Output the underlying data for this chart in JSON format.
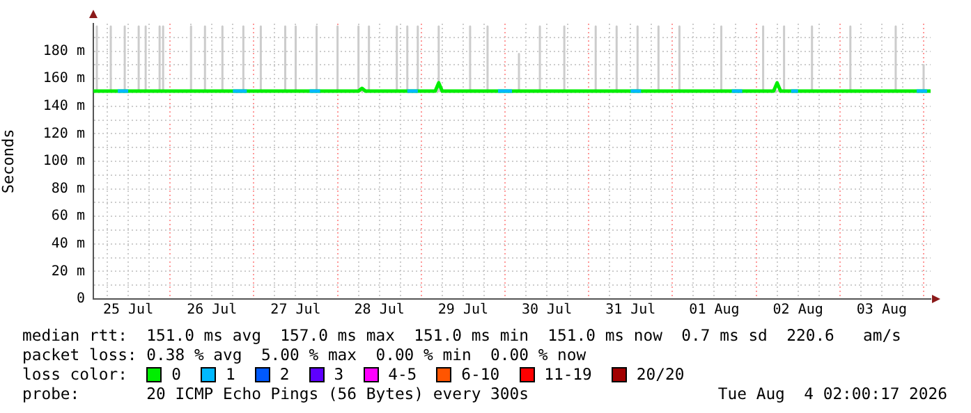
{
  "chart_data": {
    "type": "line",
    "ylabel": "Seconds",
    "legend_title": "loss color:",
    "legend": "bottom",
    "grid": true,
    "marker": "none",
    "line_style": "solid",
    "xlim": [
      "2026-07-25T02:00",
      "2026-08-04T02:00"
    ],
    "xticks": [
      {
        "value": "2026-07-25T06:00",
        "label": null
      },
      {
        "value": "2026-07-25T12:00",
        "label": "25 Jul"
      },
      {
        "value": "2026-07-25T18:00",
        "label": null
      },
      {
        "value": "2026-07-26T00:00",
        "label": null
      },
      {
        "value": "2026-07-26T06:00",
        "label": null
      },
      {
        "value": "2026-07-26T12:00",
        "label": "26 Jul"
      },
      {
        "value": "2026-07-26T18:00",
        "label": null
      },
      {
        "value": "2026-07-27T00:00",
        "label": null
      },
      {
        "value": "2026-07-27T06:00",
        "label": null
      },
      {
        "value": "2026-07-27T12:00",
        "label": "27 Jul"
      },
      {
        "value": "2026-07-27T18:00",
        "label": null
      },
      {
        "value": "2026-07-28T00:00",
        "label": null
      },
      {
        "value": "2026-07-28T06:00",
        "label": null
      },
      {
        "value": "2026-07-28T12:00",
        "label": "28 Jul"
      },
      {
        "value": "2026-07-28T18:00",
        "label": null
      },
      {
        "value": "2026-07-29T00:00",
        "label": null
      },
      {
        "value": "2026-07-29T06:00",
        "label": null
      },
      {
        "value": "2026-07-29T12:00",
        "label": "29 Jul"
      },
      {
        "value": "2026-07-29T18:00",
        "label": null
      },
      {
        "value": "2026-07-30T00:00",
        "label": null
      },
      {
        "value": "2026-07-30T06:00",
        "label": null
      },
      {
        "value": "2026-07-30T12:00",
        "label": "30 Jul"
      },
      {
        "value": "2026-07-30T18:00",
        "label": null
      },
      {
        "value": "2026-07-31T00:00",
        "label": null
      },
      {
        "value": "2026-07-31T06:00",
        "label": null
      },
      {
        "value": "2026-07-31T12:00",
        "label": "31 Jul"
      },
      {
        "value": "2026-07-31T18:00",
        "label": null
      },
      {
        "value": "2026-08-01T00:00",
        "label": null
      },
      {
        "value": "2026-08-01T06:00",
        "label": null
      },
      {
        "value": "2026-08-01T12:00",
        "label": "01 Aug"
      },
      {
        "value": "2026-08-01T18:00",
        "label": null
      },
      {
        "value": "2026-08-02T00:00",
        "label": null
      },
      {
        "value": "2026-08-02T06:00",
        "label": null
      },
      {
        "value": "2026-08-02T12:00",
        "label": "02 Aug"
      },
      {
        "value": "2026-08-02T18:00",
        "label": null
      },
      {
        "value": "2026-08-03T00:00",
        "label": null
      },
      {
        "value": "2026-08-03T06:00",
        "label": null
      },
      {
        "value": "2026-08-03T12:00",
        "label": "03 Aug"
      },
      {
        "value": "2026-08-03T18:00",
        "label": null
      },
      {
        "value": "2026-08-04T00:00",
        "label": null
      }
    ],
    "ylim": [
      0,
      200
    ],
    "yticks": [
      0,
      {
        "value": 10,
        "label": null
      },
      {
        "value": 20,
        "label": "20 m"
      },
      {
        "value": 30,
        "label": null
      },
      {
        "value": 40,
        "label": "40 m"
      },
      {
        "value": 50,
        "label": null
      },
      {
        "value": 60,
        "label": "60 m"
      },
      {
        "value": 70,
        "label": null
      },
      {
        "value": 80,
        "label": "80 m"
      },
      {
        "value": 90,
        "label": null
      },
      {
        "value": 100,
        "label": "100 m"
      },
      {
        "value": 110,
        "label": null
      },
      {
        "value": 120,
        "label": "120 m"
      },
      {
        "value": 130,
        "label": null
      },
      {
        "value": 140,
        "label": "140 m"
      },
      {
        "value": 150,
        "label": null
      },
      {
        "value": 160,
        "label": "160 m"
      },
      {
        "value": 170,
        "label": null
      },
      {
        "value": 180,
        "label": "180 m"
      },
      {
        "value": 190,
        "label": null
      }
    ],
    "series": [
      {
        "color": "#cccccc",
        "x": [
          "2026-07-25T03:00",
          "2026-07-25T03:00",
          "2026-07-25T03:00",
          "2026-07-25T07:00",
          "2026-07-25T07:00",
          "2026-07-25T07:00",
          "2026-07-25T11:00",
          "2026-07-25T11:00",
          "2026-07-25T11:00",
          "2026-07-25T15:00",
          "2026-07-25T15:00",
          "2026-07-25T15:00",
          "2026-07-25T17:00",
          "2026-07-25T17:00",
          "2026-07-25T17:00",
          "2026-07-25T21:00",
          "2026-07-25T21:00",
          "2026-07-25T21:00",
          "2026-07-25T22:00",
          "2026-07-25T22:00",
          "2026-07-25T22:00",
          "2026-07-26T06:00",
          "2026-07-26T06:00",
          "2026-07-26T06:00",
          "2026-07-26T10:00",
          "2026-07-26T10:00",
          "2026-07-26T10:00",
          "2026-07-26T15:00",
          "2026-07-26T15:00",
          "2026-07-26T15:00",
          "2026-07-26T21:00",
          "2026-07-26T21:00",
          "2026-07-26T21:00",
          "2026-07-27T02:00",
          "2026-07-27T02:00",
          "2026-07-27T02:00",
          "2026-07-27T09:00",
          "2026-07-27T09:00",
          "2026-07-27T09:00",
          "2026-07-27T12:00",
          "2026-07-27T12:00",
          "2026-07-27T12:00",
          "2026-07-27T18:00",
          "2026-07-27T18:00",
          "2026-07-27T18:00",
          "2026-07-28T00:00",
          "2026-07-28T00:00",
          "2026-07-28T00:00",
          "2026-07-28T06:00",
          "2026-07-28T06:00",
          "2026-07-28T06:00",
          "2026-07-28T09:00",
          "2026-07-28T09:00",
          "2026-07-28T09:00",
          "2026-07-28T17:00",
          "2026-07-28T17:00",
          "2026-07-28T17:00",
          "2026-07-28T20:00",
          "2026-07-28T20:00",
          "2026-07-28T20:00",
          "2026-07-28T23:00",
          "2026-07-28T23:00",
          "2026-07-28T23:00",
          "2026-07-29T05:00",
          "2026-07-29T05:00",
          "2026-07-29T05:00",
          "2026-07-29T14:00",
          "2026-07-29T14:00",
          "2026-07-29T14:00",
          "2026-07-29T19:00",
          "2026-07-29T19:00",
          "2026-07-29T19:00",
          "2026-07-30T04:00",
          "2026-07-30T04:00",
          "2026-07-30T04:00",
          "2026-07-30T10:00",
          "2026-07-30T10:00",
          "2026-07-30T10:00",
          "2026-07-30T17:00",
          "2026-07-30T17:00",
          "2026-07-30T17:00",
          "2026-07-31T02:00",
          "2026-07-31T02:00",
          "2026-07-31T02:00",
          "2026-07-31T08:00",
          "2026-07-31T08:00",
          "2026-07-31T08:00",
          "2026-07-31T14:00",
          "2026-07-31T14:00",
          "2026-07-31T14:00",
          "2026-07-31T20:00",
          "2026-07-31T20:00",
          "2026-07-31T20:00",
          "2026-08-01T02:00",
          "2026-08-01T02:00",
          "2026-08-01T02:00",
          "2026-08-01T14:00",
          "2026-08-01T14:00",
          "2026-08-01T14:00",
          "2026-08-02T02:00",
          "2026-08-02T02:00",
          "2026-08-02T02:00",
          "2026-08-02T08:00",
          "2026-08-02T08:00",
          "2026-08-02T08:00",
          "2026-08-02T16:00",
          "2026-08-02T16:00",
          "2026-08-02T16:00",
          "2026-08-03T03:00",
          "2026-08-03T03:00",
          "2026-08-03T03:00",
          "2026-08-03T16:00",
          "2026-08-03T16:00",
          "2026-08-03T16:00",
          "2026-08-04T00:00",
          "2026-08-04T00:00",
          "2026-08-04T00:00"
        ],
        "values": [
          151,
          198,
          151,
          151,
          198,
          151,
          151,
          198,
          151,
          151,
          198,
          151,
          151,
          198,
          151,
          151,
          198,
          151,
          151,
          198,
          151,
          151,
          198,
          151,
          151,
          198,
          151,
          151,
          198,
          151,
          151,
          198,
          151,
          151,
          198,
          151,
          151,
          198,
          151,
          151,
          198,
          151,
          151,
          198,
          151,
          151,
          198,
          151,
          151,
          198,
          151,
          151,
          198,
          151,
          151,
          198,
          151,
          151,
          198,
          151,
          151,
          198,
          151,
          151,
          198,
          151,
          151,
          198,
          151,
          151,
          198,
          151,
          151,
          178,
          151,
          151,
          198,
          151,
          151,
          198,
          151,
          151,
          198,
          151,
          151,
          198,
          151,
          151,
          198,
          151,
          151,
          198,
          151,
          151,
          198,
          151,
          151,
          198,
          151,
          151,
          198,
          151,
          151,
          198,
          151,
          151,
          198,
          151,
          151,
          198,
          151,
          151,
          198,
          151,
          151,
          170,
          151
        ]
      },
      {
        "name": "0",
        "color": "#00ee00",
        "x": [
          "2026-07-25T02:00",
          "2026-07-28T06:00",
          "2026-07-28T07:00",
          "2026-07-28T08:00",
          "2026-07-29T04:00",
          "2026-07-29T05:00",
          "2026-07-29T06:00",
          "2026-08-02T05:00",
          "2026-08-02T06:00",
          "2026-08-02T07:00",
          "2026-08-04T02:00"
        ],
        "values": [
          151,
          151,
          153,
          151,
          151,
          157,
          151,
          151,
          157,
          151,
          151
        ]
      },
      {
        "name": "1",
        "color": "#00b8ff",
        "x": [
          "2026-07-25T09:00",
          "2026-07-25T12:00",
          "2026-07-25T12:30",
          "2026-07-26T18:00",
          "2026-07-26T22:00",
          "2026-07-26T22:30",
          "2026-07-27T16:00",
          "2026-07-27T19:00",
          "2026-07-27T19:30",
          "2026-07-28T20:00",
          "2026-07-28T23:00",
          "2026-07-28T23:30",
          "2026-07-29T22:00",
          "2026-07-30T02:00",
          "2026-07-30T02:30",
          "2026-07-31T12:00",
          "2026-07-31T15:00",
          "2026-07-31T15:30",
          "2026-08-01T17:00",
          "2026-08-01T20:00",
          "2026-08-01T20:30",
          "2026-08-02T10:00",
          "2026-08-02T12:00",
          "2026-08-02T12:30",
          "2026-08-03T22:00",
          "2026-08-04T01:00"
        ],
        "values": [
          151,
          151,
          null,
          151,
          151,
          null,
          151,
          151,
          null,
          151,
          151,
          null,
          151,
          151,
          null,
          151,
          151,
          null,
          151,
          151,
          null,
          151,
          151,
          null,
          151,
          151
        ]
      },
      {
        "name": "2",
        "color": "#0059ff"
      },
      {
        "name": "3",
        "color": "#5e00ff"
      },
      {
        "name": "4-5",
        "color": "#ff00ff"
      },
      {
        "name": "6-10",
        "color": "#ff5500"
      },
      {
        "name": "11-19",
        "color": "#ff0000"
      },
      {
        "name": "20/20",
        "color": "#a10000"
      }
    ],
    "annotations": [
      "median rtt:  151.0 ms avg  157.0 ms max  151.0 ms min  151.0 ms now  0.7 ms sd  220.6   am/s",
      "packet loss: 0.38 % avg  5.00 % max  0.00 % min  0.00 % now",
      "probe:       20 ICMP Echo Pings (56 Bytes) every 300s",
      "Tue Aug  4 02:00:17 2026"
    ]
  }
}
